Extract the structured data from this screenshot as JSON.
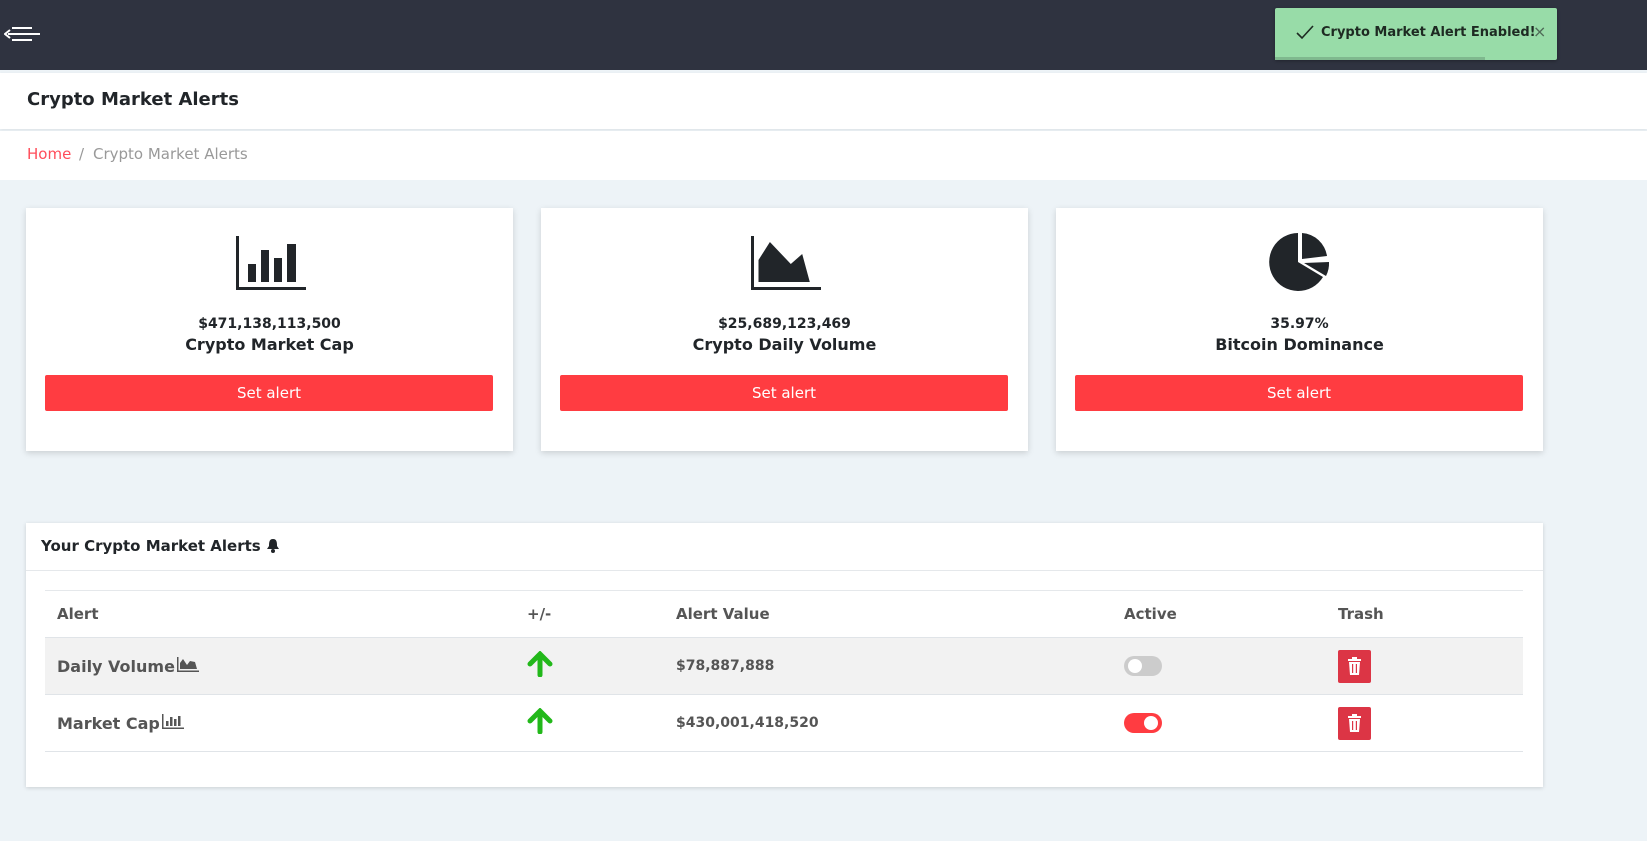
{
  "topbar": {
    "menu_icon": "menu-collapse-arrow-icon"
  },
  "toast": {
    "message": "Crypto Market Alert Enabled!",
    "close": "×",
    "color": "#98dca8"
  },
  "header": {
    "title": "Crypto Market Alerts"
  },
  "breadcrumb": {
    "home": "Home",
    "separator": "/",
    "current": "Crypto Market Alerts"
  },
  "cards": [
    {
      "icon": "bar-chart-icon",
      "value": "$471,138,113,500",
      "label": "Crypto Market Cap",
      "button": "Set alert"
    },
    {
      "icon": "area-chart-icon",
      "value": "$25,689,123,469",
      "label": "Crypto Daily Volume",
      "button": "Set alert"
    },
    {
      "icon": "pie-chart-icon",
      "value": "35.97%",
      "label": "Bitcoin Dominance",
      "button": "Set alert"
    }
  ],
  "alerts": {
    "title": "Your Crypto Market Alerts",
    "columns": [
      "Alert",
      "+/-",
      "Alert Value",
      "Active",
      "Trash"
    ],
    "rows": [
      {
        "name": "Daily Volume",
        "icon": "area-chart-icon",
        "direction": "up",
        "value": "$78,887,888",
        "active": false
      },
      {
        "name": "Market Cap",
        "icon": "bar-chart-icon",
        "direction": "up",
        "value": "$430,001,418,520",
        "active": true
      }
    ]
  },
  "colors": {
    "accent": "#ff3c41",
    "topbar": "#2f3340",
    "up_arrow": "#22b81a",
    "trash": "#dc3545"
  }
}
